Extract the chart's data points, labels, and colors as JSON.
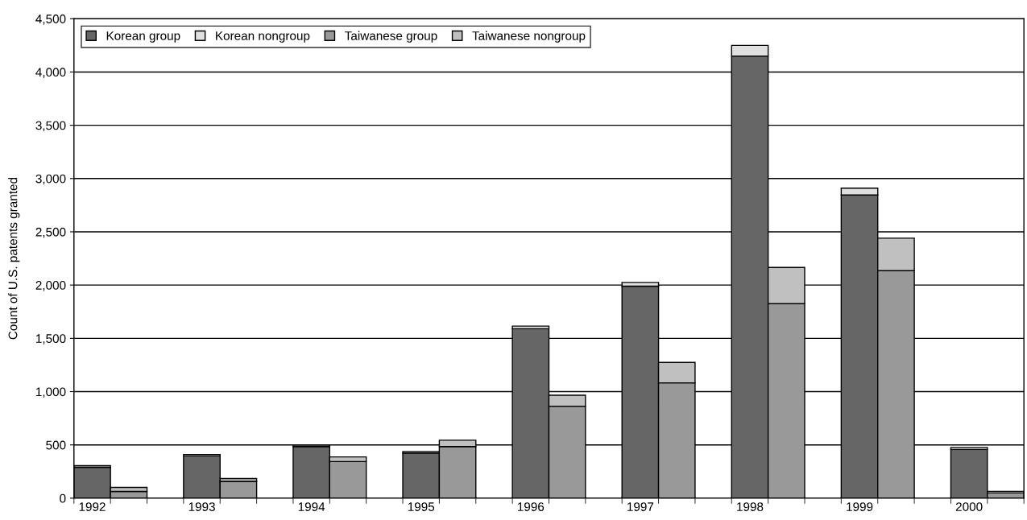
{
  "chart_data": {
    "type": "bar",
    "stacked": true,
    "ylabel": "Count of U.S. patents granted",
    "categories": [
      "1992",
      null,
      null,
      "1993",
      null,
      null,
      "1994",
      null,
      null,
      "1995",
      null,
      null,
      "1996",
      null,
      null,
      "1997",
      null,
      null,
      "1998",
      null,
      null,
      "1999",
      null,
      null,
      "2000",
      null
    ],
    "series": [
      {
        "name": "Korean group",
        "color": "#666666",
        "values": [
          290,
          null,
          null,
          397,
          null,
          null,
          484,
          null,
          null,
          424,
          null,
          null,
          1590,
          null,
          null,
          1990,
          null,
          null,
          4150,
          null,
          null,
          2845,
          null,
          null,
          457,
          null
        ]
      },
      {
        "name": "Korean nongroup",
        "color": "#e0e0e0",
        "values": [
          15,
          null,
          null,
          13,
          null,
          null,
          14,
          null,
          null,
          14,
          null,
          null,
          25,
          null,
          null,
          35,
          null,
          null,
          100,
          null,
          null,
          65,
          null,
          null,
          19,
          null
        ]
      },
      {
        "name": "Taiwanese group",
        "color": "#999999",
        "values": [
          null,
          63,
          null,
          null,
          158,
          null,
          null,
          344,
          null,
          null,
          484,
          null,
          null,
          863,
          null,
          null,
          1082,
          null,
          null,
          1825,
          null,
          null,
          2135,
          null,
          null,
          49
        ]
      },
      {
        "name": "Taiwanese nongroup",
        "color": "#c0c0c0",
        "values": [
          null,
          38,
          null,
          null,
          26,
          null,
          null,
          43,
          null,
          null,
          60,
          null,
          null,
          103,
          null,
          null,
          192,
          null,
          null,
          340,
          null,
          null,
          305,
          null,
          null,
          15
        ]
      }
    ],
    "ylim": [
      0,
      4500
    ],
    "yticks": [
      0,
      500,
      {
        "value": 1000,
        "label": "1,000"
      },
      {
        "value": 1500,
        "label": "1,500"
      },
      {
        "value": 2000,
        "label": "2,000"
      },
      {
        "value": 2500,
        "label": "2,500"
      },
      {
        "value": 3000,
        "label": "3,000"
      },
      {
        "value": 3500,
        "label": "3,500"
      },
      {
        "value": 4000,
        "label": "4,000"
      },
      {
        "value": 4500,
        "label": "4,500"
      }
    ],
    "grid": "y",
    "legend": "top left"
  }
}
